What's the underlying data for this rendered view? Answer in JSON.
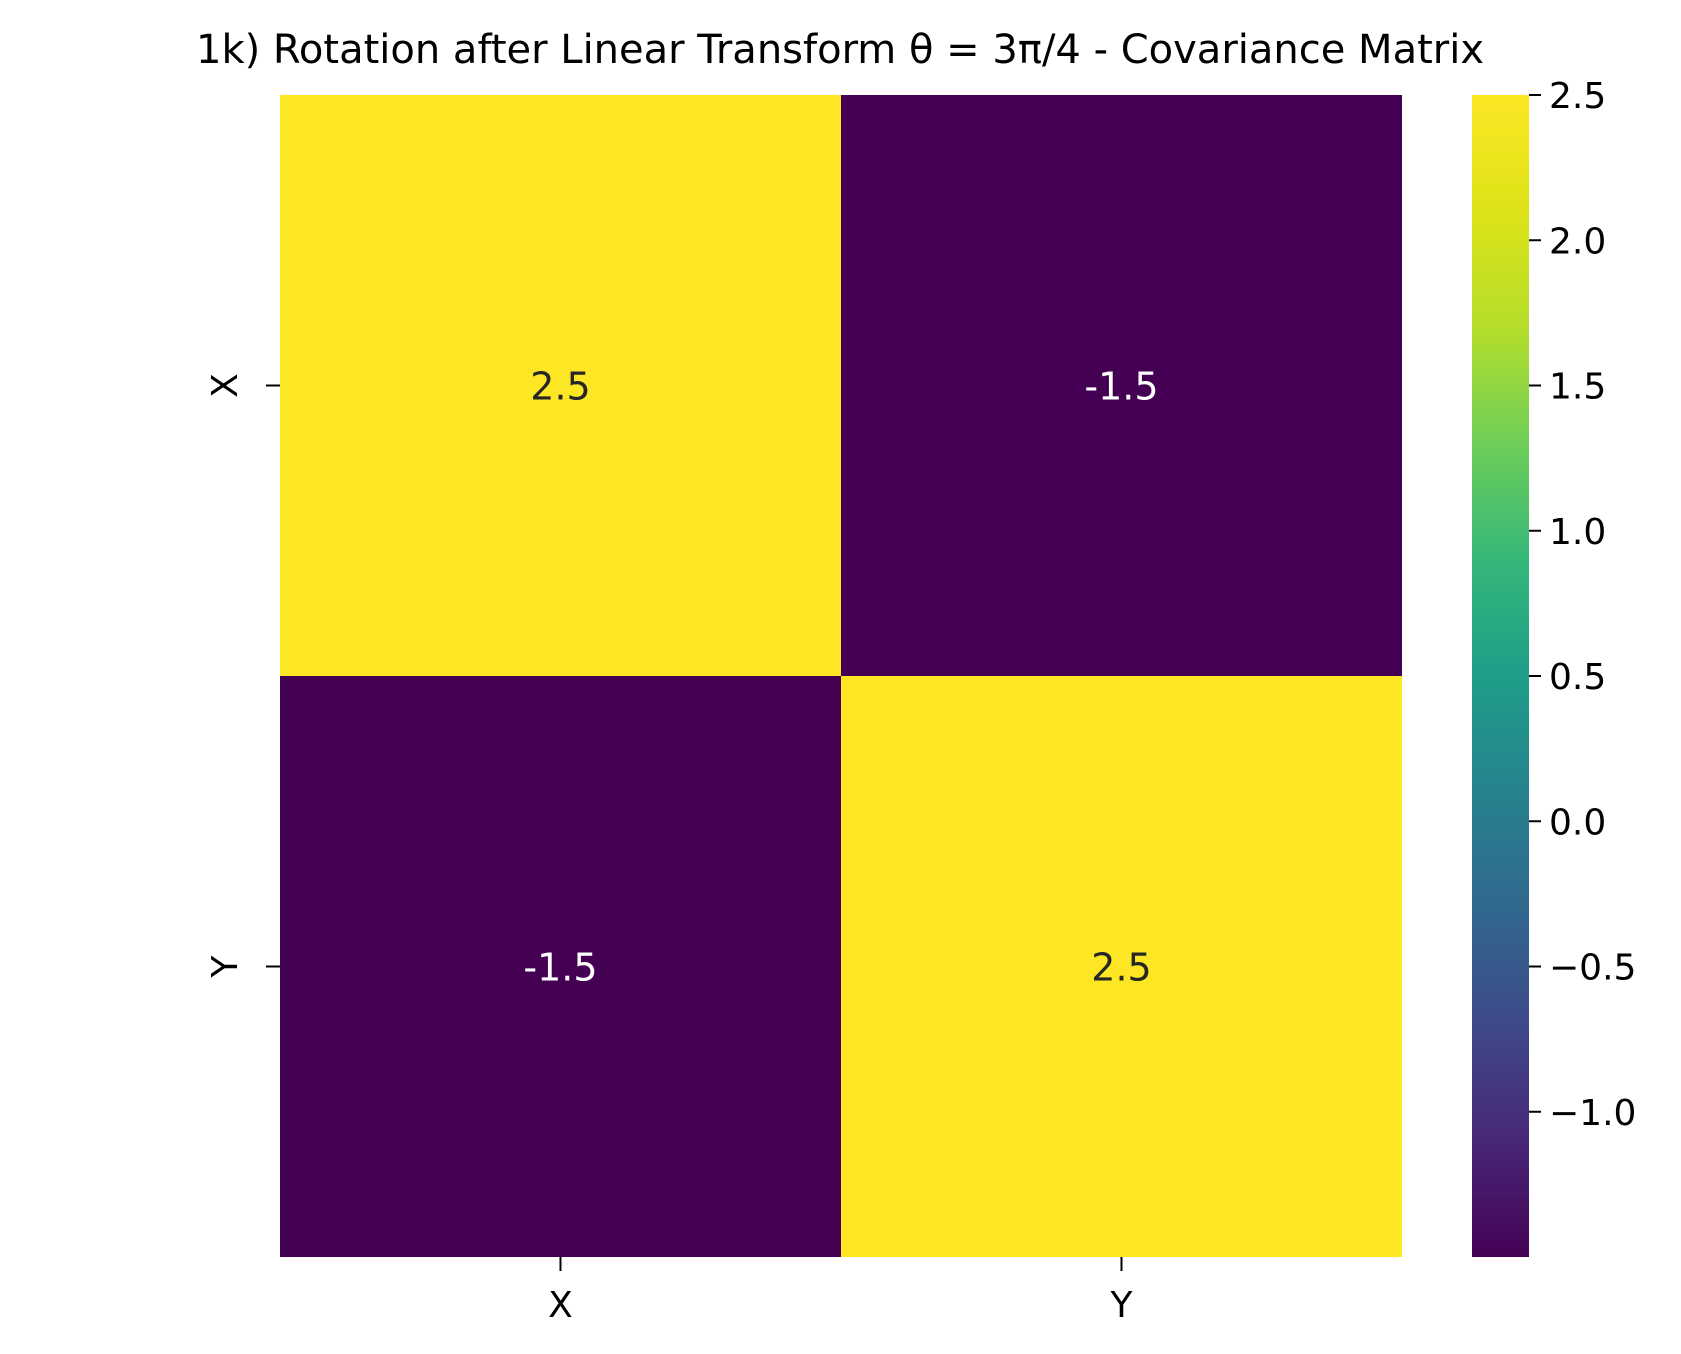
{
  "chart_data": {
    "type": "heatmap",
    "title": "1k) Rotation after Linear Transform θ = 3π/4 - Covariance Matrix",
    "x_labels": [
      "X",
      "Y"
    ],
    "y_labels": [
      "X",
      "Y"
    ],
    "matrix": [
      [
        2.5,
        -1.5
      ],
      [
        -1.5,
        2.5
      ]
    ],
    "annotations": [
      [
        "2.5",
        "-1.5"
      ],
      [
        "-1.5",
        "2.5"
      ]
    ],
    "colormap": "viridis",
    "vmin": -1.5,
    "vmax": 2.5,
    "colorbar": {
      "ticks": [
        2.5,
        2.0,
        1.5,
        1.0,
        0.5,
        0.0,
        -0.5,
        -1.0
      ],
      "tick_labels": [
        "2.5",
        "2.0",
        "1.5",
        "1.0",
        "0.5",
        "0.0",
        "−0.5",
        "−1.0"
      ]
    },
    "colors": {
      "high": "#fde725",
      "low": "#440154",
      "text_on_high": "#262626",
      "text_on_low": "#ffffff"
    }
  }
}
